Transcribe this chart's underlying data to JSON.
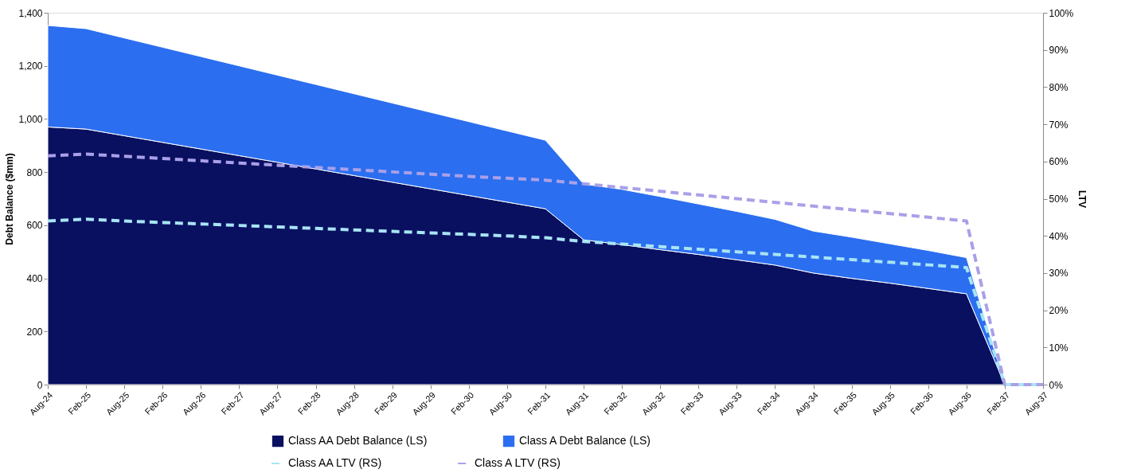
{
  "chart_data": {
    "type": "area",
    "stacked": true,
    "legend": "bottom",
    "grid": false,
    "line_style": "dashed",
    "marker": "none",
    "ylabel": "Debt Balance ($mm)",
    "y2label": "LTV",
    "categories": [
      "Aug-24",
      "Feb-25",
      "Aug-25",
      "Feb-26",
      "Aug-26",
      "Feb-27",
      "Aug-27",
      "Feb-28",
      "Aug-28",
      "Feb-29",
      "Aug-29",
      "Feb-30",
      "Aug-30",
      "Feb-31",
      "Aug-31",
      "Feb-32",
      "Aug-32",
      "Feb-33",
      "Aug-33",
      "Feb-34",
      "Aug-34",
      "Feb-35",
      "Aug-35",
      "Feb-36",
      "Aug-36",
      "Feb-37",
      "Aug-37"
    ],
    "ylim": [
      0,
      1400
    ],
    "yticks": [
      {
        "value": 0,
        "label": "0"
      },
      {
        "value": 200,
        "label": "200"
      },
      {
        "value": 400,
        "label": "400"
      },
      {
        "value": 600,
        "label": "600"
      },
      {
        "value": 800,
        "label": "800"
      },
      {
        "value": 1000,
        "label": "1,000"
      },
      {
        "value": 1200,
        "label": "1,200"
      },
      {
        "value": 1400,
        "label": "1,400"
      }
    ],
    "y2lim": [
      0,
      100
    ],
    "y2ticks": [
      {
        "value": 0,
        "label": "0%"
      },
      {
        "value": 10,
        "label": "10%"
      },
      {
        "value": 20,
        "label": "20%"
      },
      {
        "value": 30,
        "label": "30%"
      },
      {
        "value": 40,
        "label": "40%"
      },
      {
        "value": 50,
        "label": "50%"
      },
      {
        "value": 60,
        "label": "60%"
      },
      {
        "value": 70,
        "label": "70%"
      },
      {
        "value": 80,
        "label": "80%"
      },
      {
        "value": 90,
        "label": "90%"
      },
      {
        "value": 100,
        "label": "100%"
      }
    ],
    "series": [
      {
        "name": "Class AA Debt Balance (LS)",
        "color": "#0a1060",
        "values": [
          970,
          962,
          937,
          912,
          887,
          862,
          837,
          812,
          787,
          762,
          737,
          712,
          687,
          662,
          545,
          527,
          508,
          490,
          470,
          450,
          420,
          400,
          382,
          362,
          342,
          0,
          0
        ]
      },
      {
        "name": "Class A Debt Balance (LS)",
        "color": "#2b6ef0",
        "values": [
          382,
          378,
          368,
          358,
          348,
          338,
          328,
          318,
          308,
          298,
          288,
          278,
          268,
          258,
          210,
          208,
          200,
          190,
          182,
          172,
          158,
          155,
          148,
          143,
          136,
          0,
          0
        ]
      },
      {
        "name": "Class AA LTV (RS)",
        "type": "line",
        "axis": "y2",
        "color": "#a8e4f5",
        "values": [
          44,
          44.5,
          44,
          43.6,
          43.2,
          42.8,
          42.4,
          42,
          41.6,
          41.2,
          40.8,
          40.4,
          40,
          39.5,
          38.5,
          37.8,
          37.1,
          36.4,
          35.7,
          35,
          34.3,
          33.6,
          32.9,
          32.2,
          31.5,
          0,
          0
        ]
      },
      {
        "name": "Class A LTV (RS)",
        "type": "line",
        "axis": "y2",
        "color": "#a9a0e8",
        "values": [
          61.5,
          62,
          61.4,
          60.8,
          60.2,
          59.6,
          59,
          58.4,
          57.8,
          57.2,
          56.6,
          56,
          55.5,
          55,
          54,
          53,
          52,
          51,
          50,
          49,
          48,
          47,
          46,
          45,
          44,
          0,
          0
        ]
      }
    ]
  }
}
